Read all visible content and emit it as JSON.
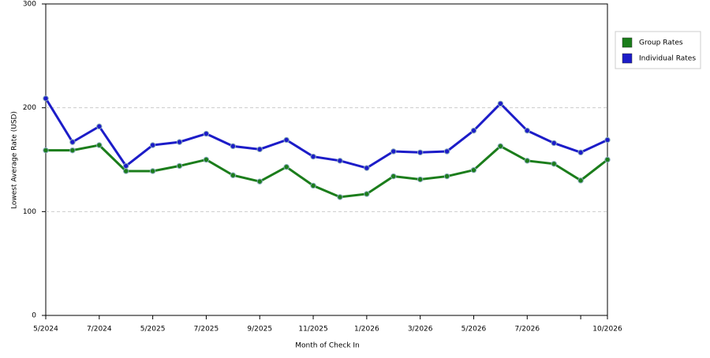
{
  "chart_data": {
    "type": "line",
    "x_label": "Month of Check In",
    "y_label": "Lowest Average Rate (USD)",
    "categories": [
      "5/2024",
      null,
      "7/2024",
      null,
      "5/2025",
      null,
      "7/2025",
      null,
      "9/2025",
      null,
      "11/2025",
      null,
      "1/2026",
      null,
      "3/2026",
      null,
      "5/2026",
      null,
      "7/2026",
      null,
      null,
      "10/2026"
    ],
    "series": [
      {
        "name": "Group Rates",
        "color": "#1b7d1b",
        "values": [
          159,
          159,
          164,
          139,
          139,
          144,
          150,
          135,
          129,
          143,
          125,
          114,
          117,
          134,
          131,
          134,
          140,
          163,
          149,
          146,
          130,
          150
        ]
      },
      {
        "name": "Individual Rates",
        "color": "#1c1cc8",
        "values": [
          209,
          167,
          182,
          144,
          164,
          167,
          175,
          163,
          160,
          169,
          153,
          149,
          142,
          158,
          157,
          158,
          178,
          204,
          178,
          166,
          157,
          169
        ]
      }
    ],
    "ylim": [
      0,
      300
    ],
    "yticks": [
      0,
      100,
      200,
      300
    ],
    "grid": true,
    "legend": "right"
  }
}
